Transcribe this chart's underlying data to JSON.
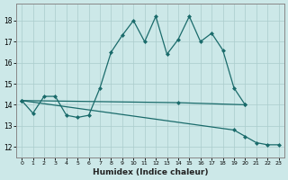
{
  "title": "",
  "xlabel": "Humidex (Indice chaleur)",
  "bg_color": "#cce8e8",
  "grid_color": "#aacccc",
  "line_color": "#1a6b6b",
  "x_ticks": [
    0,
    1,
    2,
    3,
    4,
    5,
    6,
    7,
    8,
    9,
    10,
    11,
    12,
    13,
    14,
    15,
    16,
    17,
    18,
    19,
    20,
    21,
    22,
    23
  ],
  "xlim": [
    -0.5,
    23.5
  ],
  "ylim": [
    11.5,
    18.8
  ],
  "yticks": [
    12,
    13,
    14,
    15,
    16,
    17,
    18
  ],
  "line1_x": [
    0,
    1,
    2,
    3,
    4,
    5,
    6,
    7,
    8,
    9,
    10,
    11,
    12,
    13,
    14,
    15,
    16,
    17,
    18,
    19,
    20
  ],
  "line1_y": [
    14.2,
    13.6,
    14.4,
    14.4,
    13.5,
    13.4,
    13.5,
    14.8,
    16.5,
    17.3,
    18.0,
    17.0,
    18.2,
    16.4,
    17.1,
    18.2,
    17.0,
    17.4,
    16.6,
    14.8,
    14.0
  ],
  "line2_x": [
    0,
    14,
    20
  ],
  "line2_y": [
    14.2,
    14.1,
    14.0
  ],
  "line3_x": [
    0,
    19,
    20,
    21,
    22,
    23
  ],
  "line3_y": [
    14.2,
    12.8,
    12.5,
    12.2,
    12.1,
    12.1
  ]
}
